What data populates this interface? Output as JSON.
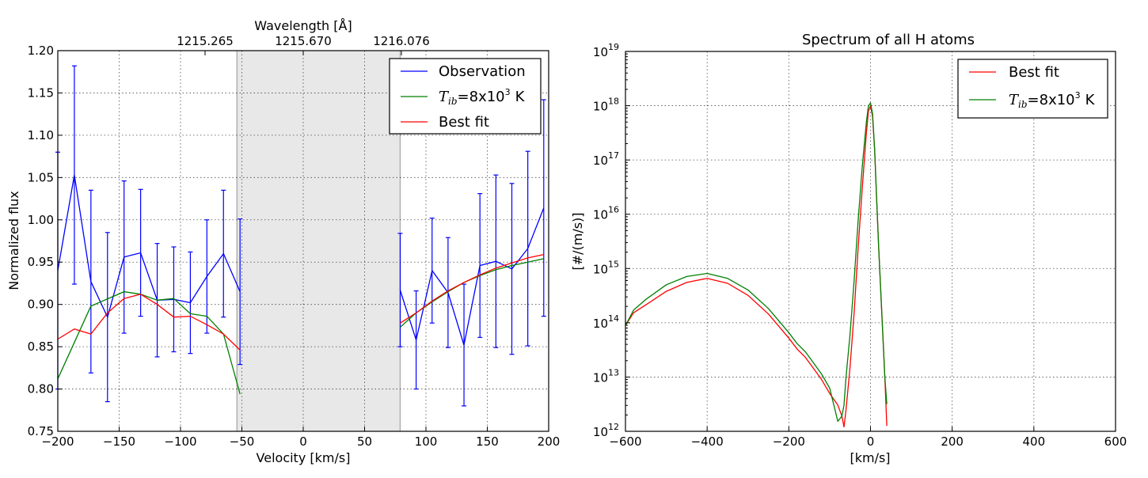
{
  "chart_data": [
    {
      "type": "line",
      "xlabel": "Velocity [km/s]",
      "ylabel": "Normalized flux",
      "top_axis_label": "Wavelength [Å]",
      "top_ticks": [
        {
          "v": -80,
          "label": "1215.265"
        },
        {
          "v": 0,
          "label": "1215.670"
        },
        {
          "v": 80,
          "label": "1216.076"
        }
      ],
      "xlim": [
        -200,
        200
      ],
      "ylim": [
        0.75,
        1.2
      ],
      "xticks": [
        -200,
        -150,
        -100,
        -50,
        0,
        50,
        100,
        150,
        200
      ],
      "xtick_labels": [
        "−200",
        "−150",
        "−100",
        "−50",
        "0",
        "50",
        "100",
        "150",
        "200"
      ],
      "yticks": [
        0.75,
        0.8,
        0.85,
        0.9,
        0.95,
        1.0,
        1.05,
        1.1,
        1.15,
        1.2
      ],
      "ytick_labels": [
        "0.75",
        "0.80",
        "0.85",
        "0.90",
        "0.95",
        "1.00",
        "1.05",
        "1.10",
        "1.15",
        "1.20"
      ],
      "grid": true,
      "shaded_region": [
        -54,
        79
      ],
      "legend": {
        "position": "top-right",
        "entries": [
          {
            "name": "Observation",
            "color": "#0000ff"
          },
          {
            "name": "T_ib=8x10^3 K",
            "color": "#008000"
          },
          {
            "name": "Best fit",
            "color": "#ff0000"
          }
        ]
      },
      "tib_label_parts": {
        "T": "T",
        "sub": "ib",
        "eq": "=8x10",
        "sup": "3",
        "unit": "K"
      },
      "series": [
        {
          "name": "Observation",
          "color": "#0000ff",
          "segments": [
            {
              "x": [
                -200,
                -186.5,
                -173,
                -159.5,
                -146,
                -132.5,
                -119,
                -105.5,
                -92,
                -78.5,
                -65,
                -51.5
              ],
              "y": [
                0.94,
                1.053,
                0.927,
                0.885,
                0.956,
                0.961,
                0.905,
                0.906,
                0.902,
                0.933,
                0.96,
                0.915
              ],
              "err": [
                0.14,
                0.129,
                0.108,
                0.1,
                0.09,
                0.075,
                0.067,
                0.062,
                0.06,
                0.067,
                0.075,
                0.086
              ]
            },
            {
              "x": [
                79,
                92,
                105,
                118,
                131,
                144,
                157,
                170,
                183,
                196
              ],
              "y": [
                0.917,
                0.858,
                0.94,
                0.914,
                0.852,
                0.946,
                0.951,
                0.942,
                0.966,
                1.014
              ],
              "err": [
                0.067,
                0.058,
                0.062,
                0.065,
                0.072,
                0.085,
                0.102,
                0.101,
                0.115,
                0.128
              ]
            }
          ]
        },
        {
          "name": "T_ib=8x10^3 K",
          "color": "#008000",
          "segments": [
            {
              "x": [
                -200,
                -173,
                -146,
                -132.5,
                -119,
                -105.5,
                -92,
                -78.5,
                -65,
                -51.5
              ],
              "y": [
                0.812,
                0.898,
                0.915,
                0.912,
                0.905,
                0.907,
                0.889,
                0.886,
                0.865,
                0.794
              ]
            },
            {
              "x": [
                79,
                92,
                105,
                118,
                131,
                144,
                157,
                170,
                183,
                196
              ],
              "y": [
                0.873,
                0.89,
                0.903,
                0.915,
                0.926,
                0.934,
                0.941,
                0.946,
                0.95,
                0.954
              ]
            }
          ]
        },
        {
          "name": "Best fit",
          "color": "#ff0000",
          "segments": [
            {
              "x": [
                -200,
                -186.5,
                -173,
                -159.5,
                -146,
                -132.5,
                -119,
                -105.5,
                -92,
                -78.5,
                -65,
                -51.5
              ],
              "y": [
                0.859,
                0.871,
                0.865,
                0.89,
                0.907,
                0.912,
                0.9,
                0.885,
                0.886,
                0.876,
                0.865,
                0.846
              ]
            },
            {
              "x": [
                79,
                92,
                105,
                118,
                131,
                144,
                157,
                170,
                183,
                196
              ],
              "y": [
                0.878,
                0.89,
                0.904,
                0.916,
                0.926,
                0.935,
                0.943,
                0.949,
                0.955,
                0.959
              ]
            }
          ]
        }
      ]
    },
    {
      "type": "line",
      "title": "Spectrum of all H atoms",
      "xlabel": "[km/s]",
      "ylabel": "[#/(m/s)]",
      "xlim": [
        -600,
        600
      ],
      "ylim_log10": [
        12,
        19
      ],
      "xticks": [
        -600,
        -400,
        -200,
        0,
        200,
        400,
        600
      ],
      "xtick_labels": [
        "−600",
        "−400",
        "−200",
        "0",
        "200",
        "400",
        "600"
      ],
      "yticks_log10": [
        12,
        13,
        14,
        15,
        16,
        17,
        18,
        19
      ],
      "ytick_base": "10",
      "ytick_exponents": [
        "12",
        "13",
        "14",
        "15",
        "16",
        "17",
        "18",
        "19"
      ],
      "grid": true,
      "legend": {
        "position": "top-right",
        "entries": [
          {
            "name": "Best fit",
            "color": "#ff0000"
          },
          {
            "name": "T_ib=8x10^3 K",
            "color": "#008000"
          }
        ]
      },
      "tib_label_parts": {
        "T": "T",
        "sub": "ib",
        "eq": "=8x10",
        "sup": "3",
        "unit": "K"
      },
      "series": [
        {
          "name": "Best fit",
          "color": "#ff0000",
          "x": [
            -600,
            -580,
            -550,
            -500,
            -450,
            -400,
            -350,
            -300,
            -250,
            -200,
            -180,
            -160,
            -140,
            -120,
            -100,
            -90,
            -80,
            -70,
            -65,
            -60,
            -50,
            -40,
            -30,
            -20,
            -10,
            -5,
            0,
            5,
            10,
            15,
            20,
            25,
            30,
            35,
            40
          ],
          "log10": [
            13.95,
            14.2,
            14.35,
            14.6,
            14.76,
            14.83,
            14.73,
            14.5,
            14.15,
            13.7,
            13.5,
            13.35,
            13.15,
            12.95,
            12.7,
            12.6,
            12.5,
            12.3,
            12.1,
            12.4,
            13.2,
            14.2,
            15.4,
            16.5,
            17.5,
            17.9,
            18.0,
            17.8,
            17.2,
            16.3,
            15.4,
            14.6,
            13.8,
            13.0,
            12.1
          ]
        },
        {
          "name": "T_ib=8x10^3 K",
          "color": "#008000",
          "x": [
            -600,
            -580,
            -550,
            -500,
            -450,
            -400,
            -350,
            -300,
            -250,
            -200,
            -180,
            -160,
            -140,
            -120,
            -100,
            -90,
            -80,
            -70,
            -65,
            -60,
            -50,
            -40,
            -30,
            -20,
            -10,
            -5,
            0,
            5,
            10,
            15,
            20,
            25,
            30,
            35,
            40
          ],
          "log10": [
            13.95,
            14.25,
            14.45,
            14.72,
            14.87,
            14.92,
            14.82,
            14.6,
            14.25,
            13.8,
            13.6,
            13.45,
            13.25,
            13.05,
            12.8,
            12.5,
            12.2,
            12.3,
            12.5,
            13.0,
            13.8,
            14.8,
            15.9,
            16.9,
            17.7,
            18.0,
            18.05,
            17.85,
            17.2,
            16.3,
            15.4,
            14.6,
            13.8,
            13.0,
            12.5
          ]
        }
      ]
    }
  ]
}
